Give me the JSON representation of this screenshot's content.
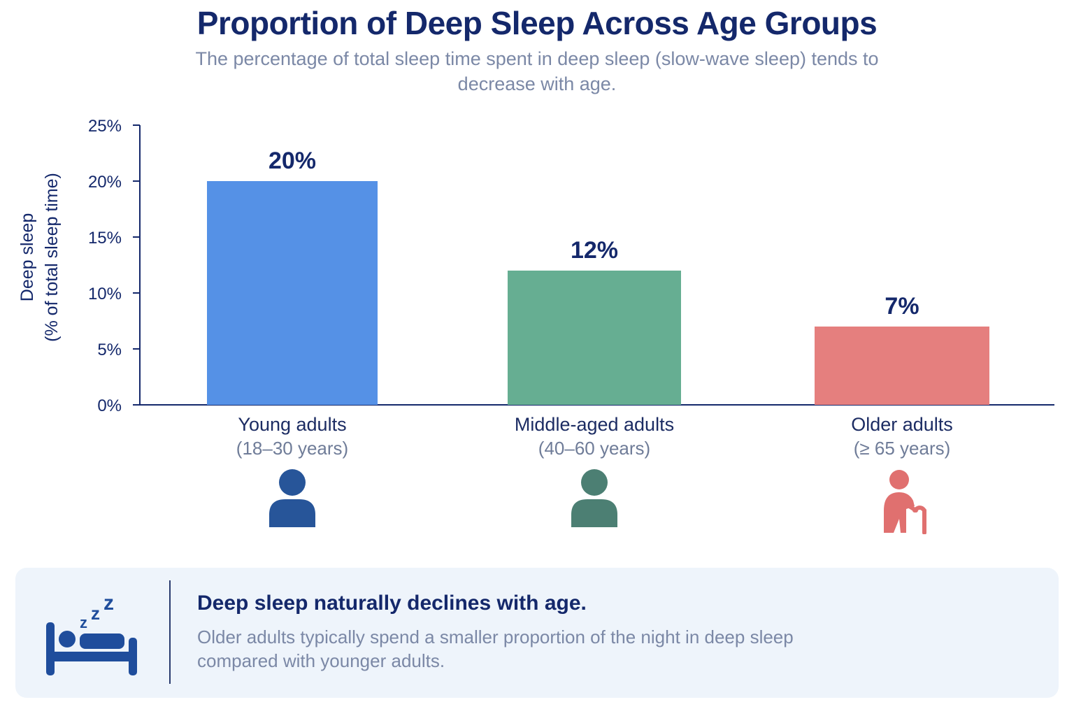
{
  "title": "Proportion of Deep Sleep Across Age Groups",
  "subtitle": "The percentage of total sleep time spent in deep sleep (slow-wave sleep) tends to decrease with age.",
  "chart_data": {
    "type": "bar",
    "ylabel_line1": "Deep sleep",
    "ylabel_line2": "(% of total sleep time)",
    "ylim": [
      0,
      25
    ],
    "yticks": [
      0,
      5,
      10,
      15,
      20,
      25
    ],
    "ytick_labels": [
      "0%",
      "5%",
      "10%",
      "15%",
      "20%",
      "25%"
    ],
    "grid": false,
    "categories": [
      "Young adults",
      "Middle-aged adults",
      "Older adults"
    ],
    "category_ranges": [
      "(18–30 years)",
      "(40–60 years)",
      "(≥ 65 years)"
    ],
    "values": [
      20,
      12,
      7
    ],
    "value_labels": [
      "20%",
      "12%",
      "7%"
    ],
    "colors": [
      "#5591e6",
      "#66ae92",
      "#e57f7e"
    ],
    "icon_names": [
      "young-adult-person-icon",
      "middle-aged-person-icon",
      "older-adult-with-cane-icon"
    ],
    "icon_colors": [
      "#275599",
      "#4c7f73",
      "#e0706f"
    ]
  },
  "note": {
    "icon": "sleeping-in-bed-icon",
    "heading": "Deep sleep naturally declines with age.",
    "body": "Older adults typically spend a smaller proportion of the night in deep sleep compared with younger adults."
  }
}
